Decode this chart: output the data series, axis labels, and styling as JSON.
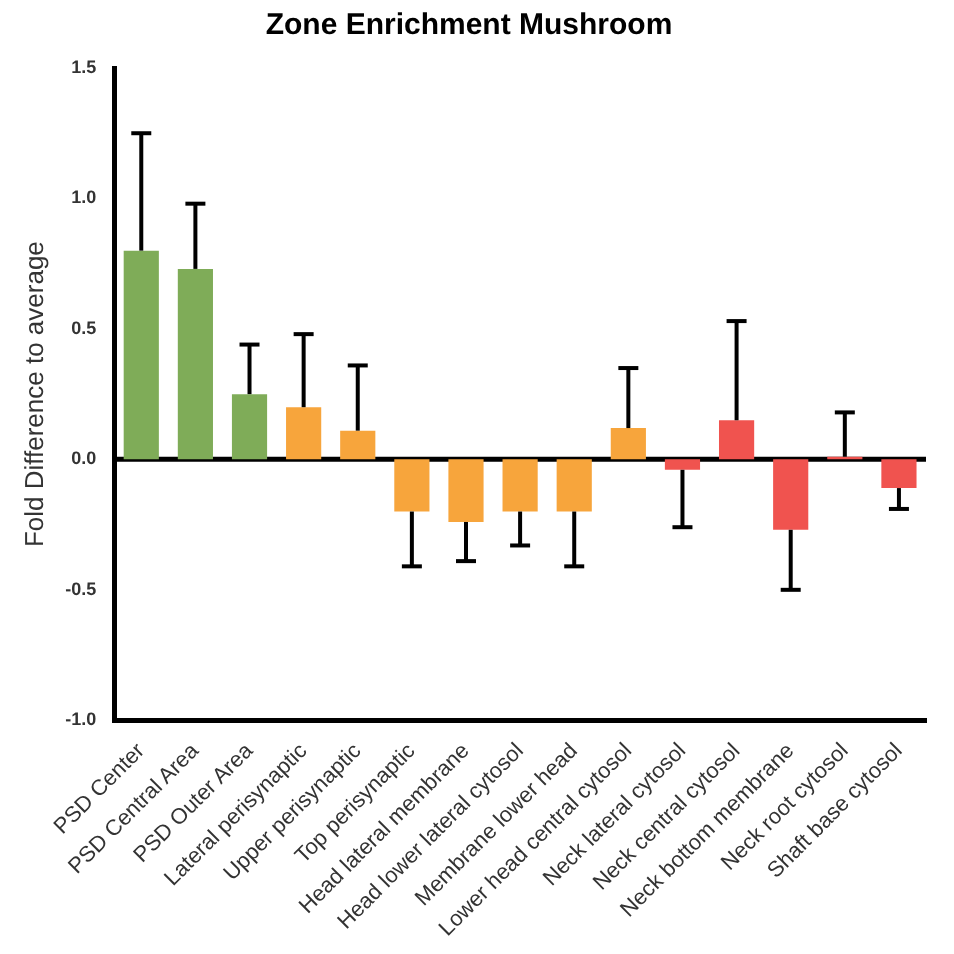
{
  "chart_data": {
    "type": "bar",
    "title": "Zone Enrichment Mushroom",
    "ylabel": "Fold Difference to average",
    "categories": [
      "PSD Center",
      "PSD Central Area",
      "PSD Outer Area",
      "Lateral perisynaptic",
      "Upper perisynaptic",
      "Top perisynaptic",
      "Head lateral membrane",
      "Head lower lateral cytosol",
      "Membrane lower head",
      "Lower head central cytosol",
      "Neck lateral cytosol",
      "Neck central cytosol",
      "Neck bottom membrane",
      "Neck root cytosol",
      "Shaft base cytosol"
    ],
    "values": [
      0.8,
      0.73,
      0.25,
      0.2,
      0.11,
      -0.2,
      -0.24,
      -0.2,
      -0.2,
      0.12,
      -0.04,
      0.15,
      -0.27,
      0.01,
      -0.11
    ],
    "errors": [
      [
        0.8,
        1.25
      ],
      [
        0.73,
        0.98
      ],
      [
        0.25,
        0.44
      ],
      [
        0.2,
        0.48
      ],
      [
        0.11,
        0.36
      ],
      [
        -0.41,
        -0.2
      ],
      [
        -0.39,
        -0.24
      ],
      [
        -0.33,
        -0.2
      ],
      [
        -0.41,
        -0.2
      ],
      [
        0.12,
        0.35
      ],
      [
        -0.26,
        -0.04
      ],
      [
        0.15,
        0.53
      ],
      [
        -0.5,
        -0.27
      ],
      [
        0.01,
        0.18
      ],
      [
        -0.19,
        -0.11
      ]
    ],
    "colors": [
      "#7fac58",
      "#7fac58",
      "#7fac58",
      "#f7a53c",
      "#f7a53c",
      "#f7a53c",
      "#f7a53c",
      "#f7a53c",
      "#f7a53c",
      "#f7a53c",
      "#f0534f",
      "#f0534f",
      "#f0534f",
      "#f0534f",
      "#f0534f"
    ],
    "ylim": [
      -1,
      1.5
    ],
    "yticks": [
      {
        "value": -1,
        "label": "-1.0"
      },
      {
        "value": -0.5,
        "label": "-0.5"
      },
      {
        "value": 0,
        "label": "0.0"
      },
      {
        "value": 0.5,
        "label": "0.5"
      },
      {
        "value": 1,
        "label": "1.0"
      },
      {
        "value": 1.5,
        "label": "1.5"
      }
    ],
    "ref_lines": [
      {
        "axis": "y",
        "value": 0,
        "color": "#000000"
      }
    ],
    "grid": false,
    "legend": false
  }
}
